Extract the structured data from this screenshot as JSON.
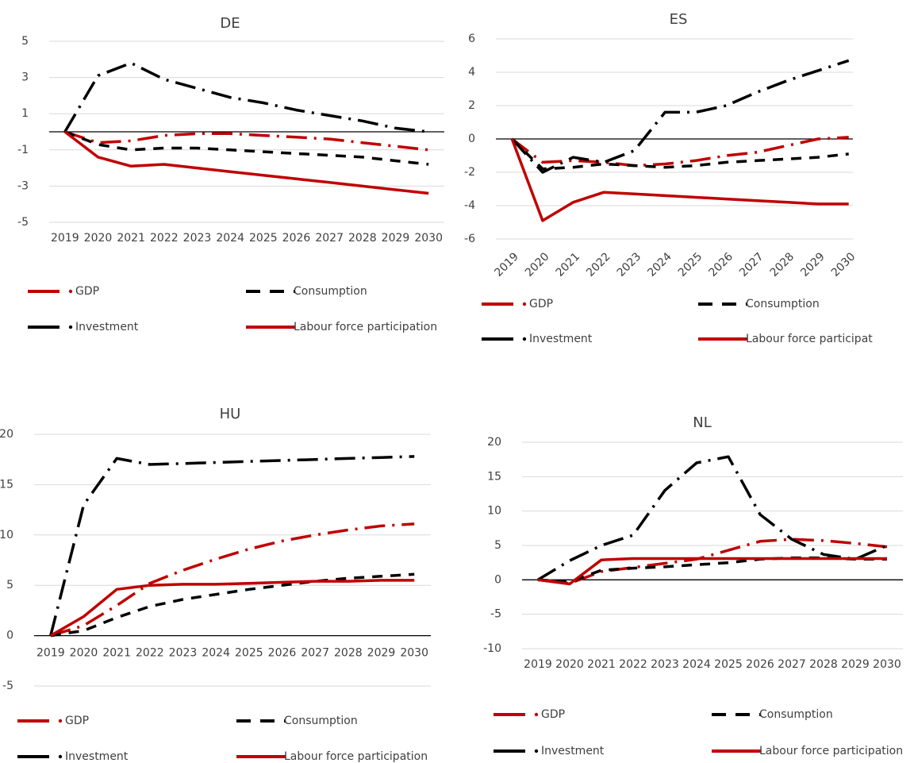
{
  "chart_data": [
    {
      "type": "line",
      "title": "DE",
      "categories": [
        "2019",
        "2020",
        "2021",
        "2022",
        "2023",
        "2024",
        "2025",
        "2026",
        "2027",
        "2028",
        "2029",
        "2030"
      ],
      "ylim": [
        -5,
        5
      ],
      "yticks": [
        -5,
        -3,
        -1,
        1,
        3,
        5
      ],
      "grid": true,
      "series": [
        {
          "name": "GDP",
          "color": "#c00000",
          "dash": "dash-dot",
          "values": [
            0,
            -0.6,
            -0.5,
            -0.2,
            -0.1,
            -0.1,
            -0.2,
            -0.3,
            -0.4,
            -0.6,
            -0.8,
            -1.0
          ]
        },
        {
          "name": "Consumption",
          "color": "#000000",
          "dash": "dash",
          "values": [
            0,
            -0.7,
            -1.0,
            -0.9,
            -0.9,
            -1.0,
            -1.1,
            -1.2,
            -1.3,
            -1.4,
            -1.6,
            -1.8
          ]
        },
        {
          "name": "Investment",
          "color": "#000000",
          "dash": "dash-dot",
          "values": [
            0,
            3.1,
            3.8,
            2.9,
            2.4,
            1.9,
            1.6,
            1.2,
            0.9,
            0.6,
            0.2,
            0
          ]
        },
        {
          "name": "Labour force participation",
          "color": "#c00000",
          "dash": "solid",
          "values": [
            0,
            -1.4,
            -1.9,
            -1.8,
            -2.0,
            -2.2,
            -2.4,
            -2.6,
            -2.8,
            -3.0,
            -3.2,
            -3.4
          ]
        }
      ]
    },
    {
      "type": "line",
      "title": "ES",
      "categories": [
        "2019",
        "2020",
        "2021",
        "2022",
        "2023",
        "2024",
        "2025",
        "2026",
        "2027",
        "2028",
        "2029",
        "2030"
      ],
      "ylim": [
        -6,
        6
      ],
      "yticks": [
        -6,
        -4,
        -2,
        0,
        2,
        4,
        6
      ],
      "grid": true,
      "x_label_rotation": -45,
      "series": [
        {
          "name": "GDP",
          "color": "#c00000",
          "dash": "dash-dot",
          "values": [
            0,
            -1.4,
            -1.3,
            -1.4,
            -1.6,
            -1.5,
            -1.3,
            -1.0,
            -0.8,
            -0.4,
            0,
            0.1
          ]
        },
        {
          "name": "Consumption",
          "color": "#000000",
          "dash": "dash",
          "values": [
            0,
            -1.8,
            -1.7,
            -1.5,
            -1.6,
            -1.7,
            -1.6,
            -1.4,
            -1.3,
            -1.2,
            -1.1,
            -0.9
          ]
        },
        {
          "name": "Investment",
          "color": "#000000",
          "dash": "dash-dot",
          "values": [
            0,
            -2.0,
            -1.1,
            -1.4,
            -0.7,
            1.6,
            1.6,
            2.0,
            2.8,
            3.5,
            4.1,
            4.7
          ]
        },
        {
          "name": "Labour force participat",
          "color": "#c00000",
          "dash": "solid",
          "values": [
            0,
            -4.9,
            -3.8,
            -3.2,
            -3.3,
            -3.4,
            -3.5,
            -3.6,
            -3.7,
            -3.8,
            -3.9,
            -3.9
          ]
        }
      ]
    },
    {
      "type": "line",
      "title": "HU",
      "categories": [
        "2019",
        "2020",
        "2021",
        "2022",
        "2023",
        "2024",
        "2025",
        "2026",
        "2027",
        "2028",
        "2029",
        "2030"
      ],
      "ylim": [
        -5,
        20
      ],
      "yticks": [
        -5,
        0,
        5,
        10,
        15,
        20
      ],
      "grid": true,
      "series": [
        {
          "name": "GDP",
          "color": "#c00000",
          "dash": "dash-dot",
          "values": [
            0,
            1.0,
            3.0,
            5.2,
            6.5,
            7.6,
            8.6,
            9.4,
            10.0,
            10.5,
            10.9,
            11.1
          ]
        },
        {
          "name": "Consumption",
          "color": "#000000",
          "dash": "dash",
          "values": [
            0,
            0.5,
            1.8,
            2.9,
            3.6,
            4.1,
            4.6,
            5.0,
            5.4,
            5.7,
            5.9,
            6.1
          ]
        },
        {
          "name": "Investment",
          "color": "#000000",
          "dash": "dash-dot",
          "values": [
            0,
            13.0,
            17.6,
            17.0,
            17.1,
            17.2,
            17.3,
            17.4,
            17.5,
            17.6,
            17.7,
            17.8
          ]
        },
        {
          "name": "Labour force participation",
          "color": "#c00000",
          "dash": "solid",
          "values": [
            0,
            1.9,
            4.6,
            5.0,
            5.1,
            5.1,
            5.2,
            5.3,
            5.4,
            5.4,
            5.5,
            5.5
          ]
        }
      ]
    },
    {
      "type": "line",
      "title": "NL",
      "categories": [
        "2019",
        "2020",
        "2021",
        "2022",
        "2023",
        "2024",
        "2025",
        "2026",
        "2027",
        "2028",
        "2029",
        "2030"
      ],
      "ylim": [
        -10,
        20
      ],
      "yticks": [
        -10,
        -5,
        0,
        5,
        10,
        15,
        20
      ],
      "grid": true,
      "series": [
        {
          "name": "GDP",
          "color": "#c00000",
          "dash": "dash-dot",
          "values": [
            0,
            -0.5,
            1.2,
            1.8,
            2.4,
            3.0,
            4.3,
            5.6,
            5.9,
            5.7,
            5.3,
            4.8
          ]
        },
        {
          "name": "Consumption",
          "color": "#000000",
          "dash": "dash",
          "values": [
            0,
            -0.3,
            1.4,
            1.7,
            1.9,
            2.2,
            2.5,
            3.0,
            3.2,
            3.2,
            3.0,
            3.0
          ]
        },
        {
          "name": "Investment",
          "color": "#000000",
          "dash": "dash-dot",
          "values": [
            0,
            2.8,
            5.0,
            6.5,
            13.0,
            17.0,
            17.9,
            9.5,
            5.9,
            3.7,
            3.0,
            5.0
          ]
        },
        {
          "name": "Labour force participation",
          "color": "#c00000",
          "dash": "solid",
          "values": [
            0,
            -0.6,
            2.9,
            3.1,
            3.1,
            3.1,
            3.1,
            3.1,
            3.1,
            3.1,
            3.1,
            3.1
          ]
        }
      ]
    }
  ]
}
